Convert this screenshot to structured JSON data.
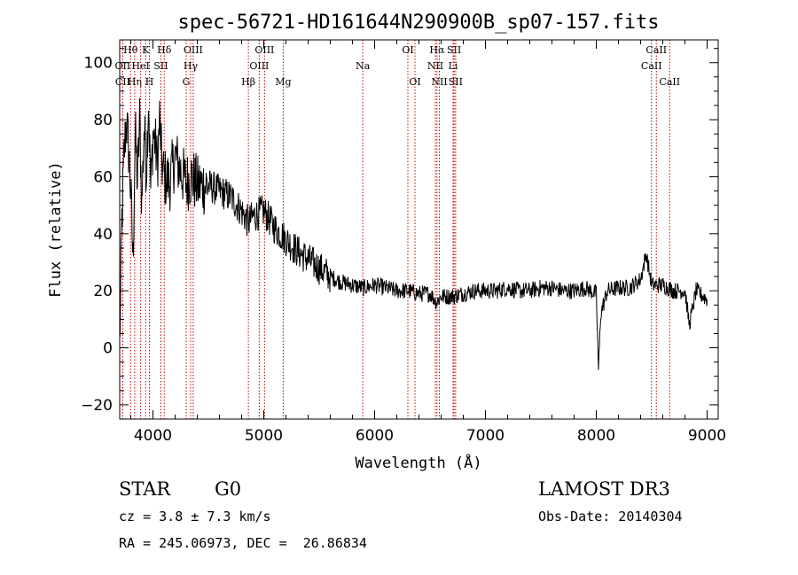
{
  "chart_data": {
    "type": "line",
    "title": "spec-56721-HD161644N290900B_sp07-157.fits",
    "xlabel": "Wavelength (Å)",
    "ylabel": "Flux (relative)",
    "xlim": [
      3700,
      9100
    ],
    "ylim": [
      -25,
      108
    ],
    "x_ticks": [
      4000,
      5000,
      6000,
      7000,
      8000,
      9000
    ],
    "x_tick_labels": [
      "4000",
      "5000",
      "6000",
      "7000",
      "8000",
      "9000"
    ],
    "y_ticks": [
      -20,
      0,
      20,
      40,
      60,
      80,
      100
    ],
    "y_tick_labels": [
      "−20",
      "0",
      "20",
      "40",
      "60",
      "80",
      "100"
    ],
    "spectrum": {
      "name": "flux",
      "x": [
        3700,
        3720,
        3740,
        3760,
        3780,
        3800,
        3820,
        3840,
        3860,
        3880,
        3900,
        3920,
        3940,
        3960,
        3980,
        4000,
        4020,
        4040,
        4060,
        4080,
        4100,
        4150,
        4200,
        4250,
        4300,
        4350,
        4400,
        4500,
        4600,
        4700,
        4800,
        4860,
        4900,
        5000,
        5100,
        5200,
        5300,
        5400,
        5500,
        5600,
        5700,
        5800,
        5900,
        6000,
        6100,
        6200,
        6300,
        6400,
        6500,
        6560,
        6600,
        6700,
        6800,
        6900,
        7000,
        7100,
        7200,
        7300,
        7400,
        7500,
        7600,
        7700,
        7800,
        7900,
        8000,
        8020,
        8040,
        8100,
        8200,
        8300,
        8400,
        8450,
        8500,
        8600,
        8700,
        8800,
        8840,
        8900,
        9000
      ],
      "values": [
        0,
        45,
        68,
        80,
        70,
        55,
        30,
        76,
        58,
        80,
        50,
        78,
        62,
        88,
        55,
        75,
        72,
        64,
        80,
        65,
        60,
        58,
        67,
        62,
        58,
        60,
        57,
        57,
        55,
        53,
        48,
        44,
        46,
        48,
        42,
        38,
        34,
        31,
        28,
        25,
        23,
        22,
        21,
        22,
        21,
        20,
        20,
        19,
        19,
        16,
        18,
        18,
        19,
        20,
        20,
        20,
        21,
        20,
        20,
        21,
        21,
        20,
        20,
        21,
        19,
        -8,
        12,
        20,
        21,
        21,
        24,
        33,
        22,
        22,
        20,
        20,
        8,
        20,
        17
      ]
    },
    "spectral_lines": [
      {
        "label": "Hθ",
        "x": 3798,
        "row": 1
      },
      {
        "label": "OII",
        "x": 3727,
        "row": 2
      },
      {
        "label": "CII",
        "x": 3727,
        "row": 3
      },
      {
        "label": "Hη",
        "x": 3835,
        "row": 3
      },
      {
        "label": "HeI",
        "x": 3889,
        "row": 2
      },
      {
        "label": "K",
        "x": 3934,
        "row": 1
      },
      {
        "label": "H",
        "x": 3968,
        "row": 3
      },
      {
        "label": "SII",
        "x": 4072,
        "row": 2
      },
      {
        "label": "Hδ",
        "x": 4102,
        "row": 1
      },
      {
        "label": "OIII",
        "x": 4363,
        "row": 1
      },
      {
        "label": "Hγ",
        "x": 4340,
        "row": 2
      },
      {
        "label": "G",
        "x": 4300,
        "row": 3
      },
      {
        "label": "Hβ",
        "x": 4861,
        "row": 3
      },
      {
        "label": "OIII",
        "x": 5007,
        "row": 1
      },
      {
        "label": "OIII",
        "x": 4959,
        "row": 2
      },
      {
        "label": "Mg",
        "x": 5175,
        "row": 3
      },
      {
        "label": "Na",
        "x": 5893,
        "row": 2
      },
      {
        "label": "OI",
        "x": 6300,
        "row": 1
      },
      {
        "label": "OI",
        "x": 6364,
        "row": 3
      },
      {
        "label": "Hα",
        "x": 6563,
        "row": 1
      },
      {
        "label": "NII",
        "x": 6548,
        "row": 2
      },
      {
        "label": "NII",
        "x": 6584,
        "row": 3
      },
      {
        "label": "SII",
        "x": 6717,
        "row": 1
      },
      {
        "label": "Li",
        "x": 6708,
        "row": 2
      },
      {
        "label": "SII",
        "x": 6731,
        "row": 3
      },
      {
        "label": "CaII",
        "x": 8542,
        "row": 1
      },
      {
        "label": "CaII",
        "x": 8498,
        "row": 2
      },
      {
        "label": "CaII",
        "x": 8662,
        "row": 3
      }
    ],
    "colors": {
      "spectrum": "#000000",
      "lines": "#c00000"
    }
  },
  "info": {
    "object_class": "STAR",
    "subclass": "G0",
    "redshift": "cz = 3.8 ± 7.3 km/s",
    "coords": "RA = 245.06973, DEC =  26.86834",
    "survey": "LAMOST DR3",
    "obs_date": "Obs-Date: 20140304"
  }
}
